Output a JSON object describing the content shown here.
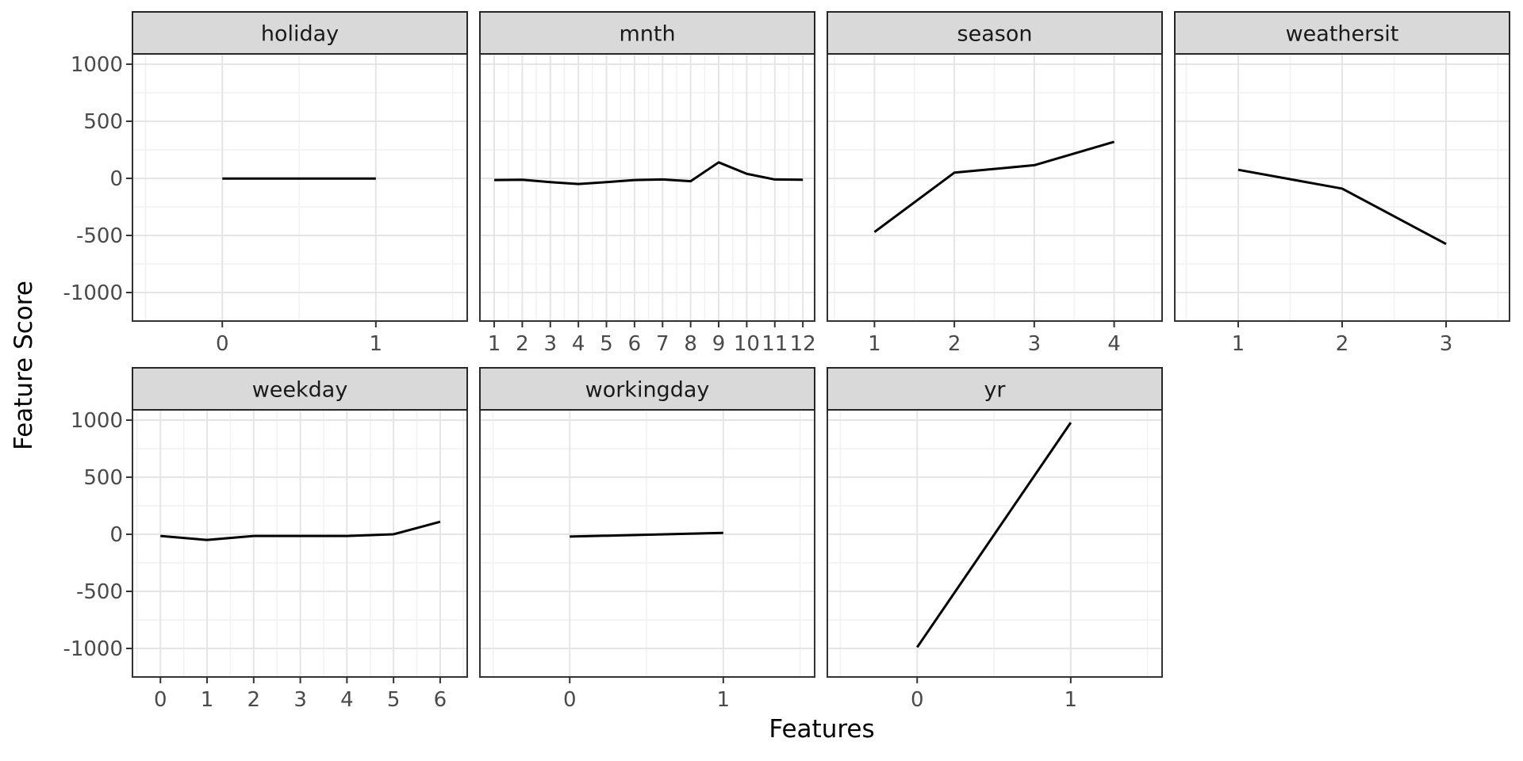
{
  "chart_data": {
    "type": "line",
    "title": "",
    "xlabel": "Features",
    "ylabel": "Feature Score",
    "ylim": [
      -1250,
      1090
    ],
    "yticks": [
      1000,
      500,
      0,
      -500,
      -1000
    ],
    "yticks_minor": [
      750,
      250,
      -250,
      -750
    ],
    "grid": "major+minor",
    "legend": "none",
    "facet_layout": {
      "rows": 2,
      "cols": 4,
      "strip_position": "top",
      "order": [
        "holiday",
        "mnth",
        "season",
        "weathersit",
        "weekday",
        "workingday",
        "yr"
      ]
    },
    "facets": [
      {
        "label": "holiday",
        "row": 0,
        "col": 0,
        "xlim": [
          -0.585,
          1.595
        ],
        "xticks": [
          0,
          1
        ],
        "x": [
          0,
          1
        ],
        "y": [
          -2,
          -2
        ]
      },
      {
        "label": "mnth",
        "row": 0,
        "col": 1,
        "xlim": [
          0.49,
          12.42
        ],
        "xticks": [
          1,
          2,
          3,
          4,
          5,
          6,
          7,
          8,
          9,
          10,
          11,
          12
        ],
        "x": [
          1,
          2,
          3,
          4,
          5,
          6,
          7,
          8,
          9,
          10,
          11,
          12
        ],
        "y": [
          -15,
          -12,
          -33,
          -50,
          -33,
          -15,
          -10,
          -25,
          140,
          40,
          -10,
          -12
        ]
      },
      {
        "label": "season",
        "row": 0,
        "col": 2,
        "xlim": [
          0.41,
          4.6
        ],
        "xticks": [
          1,
          2,
          3,
          4
        ],
        "x": [
          1,
          2,
          3,
          4
        ],
        "y": [
          -470,
          50,
          115,
          320
        ]
      },
      {
        "label": "weathersit",
        "row": 0,
        "col": 3,
        "xlim": [
          0.39,
          3.61
        ],
        "xticks": [
          1,
          2,
          3
        ],
        "x": [
          1,
          2,
          3
        ],
        "y": [
          75,
          -90,
          -575
        ]
      },
      {
        "label": "weekday",
        "row": 1,
        "col": 0,
        "xlim": [
          -0.6,
          6.58
        ],
        "xticks": [
          0,
          1,
          2,
          3,
          4,
          5,
          6
        ],
        "x": [
          0,
          1,
          2,
          3,
          4,
          5,
          6
        ],
        "y": [
          -15,
          -50,
          -15,
          -15,
          -15,
          0,
          110
        ]
      },
      {
        "label": "workingday",
        "row": 1,
        "col": 1,
        "xlim": [
          -0.585,
          1.595
        ],
        "xticks": [
          0,
          1
        ],
        "x": [
          0,
          1
        ],
        "y": [
          -20,
          12
        ]
      },
      {
        "label": "yr",
        "row": 1,
        "col": 2,
        "xlim": [
          -0.585,
          1.595
        ],
        "xticks": [
          0,
          1
        ],
        "x": [
          0,
          1
        ],
        "y": [
          -990,
          978
        ]
      }
    ],
    "colors": {
      "line": "#000000",
      "panel_bg": "#ffffff",
      "panel_border": "#333333",
      "grid_major": "#e5e5e5",
      "grid_minor": "#f1f1f1",
      "strip_bg": "#d9d9d9",
      "strip_border": "#262626",
      "strip_text": "#1a1a1a",
      "tick": "#333333",
      "tick_label": "#4a4a4a",
      "axis_title": "#000000",
      "background": "#ffffff"
    }
  }
}
